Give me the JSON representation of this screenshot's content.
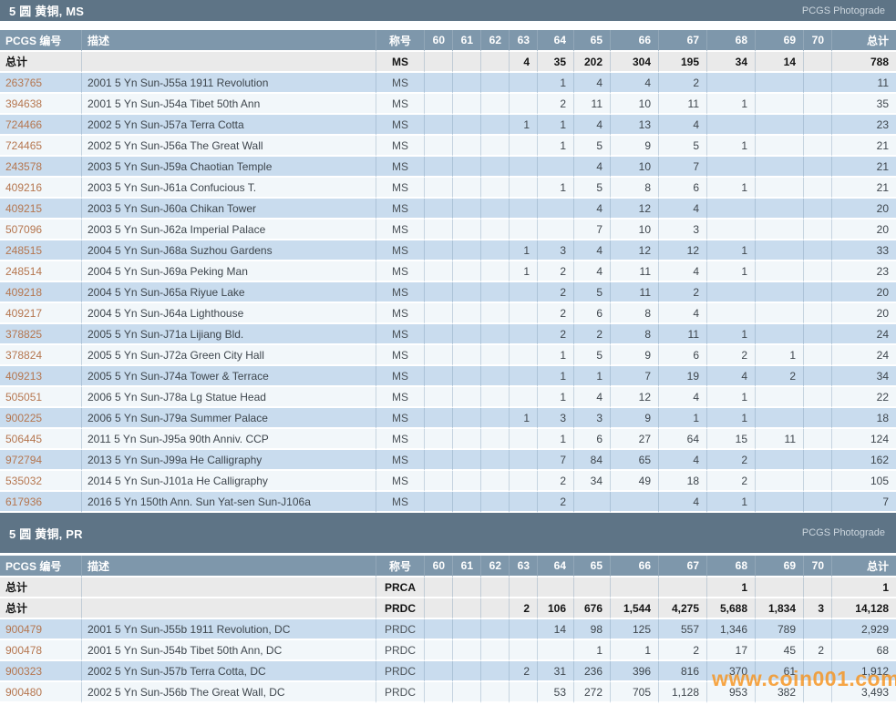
{
  "table_header": {
    "pcgs_number": "PCGS 编号",
    "description": "描述",
    "designation": "称号",
    "grades": [
      "60",
      "61",
      "62",
      "63",
      "64",
      "65",
      "66",
      "67",
      "68",
      "69",
      "70"
    ],
    "total": "总计"
  },
  "watermark": "www.coin001.com",
  "colors": {
    "section_bar": "#5e7486",
    "column_header": "#7e97ab",
    "row_blue": "#c9dcee",
    "row_white": "#f2f7fa",
    "totals_row": "#eaeaea",
    "link": "#b5764f",
    "watermark": "#f7941e"
  },
  "sections": [
    {
      "title": "5 圆 黄铜, MS",
      "photograde_label": "PCGS Photograde",
      "total_rows": [
        {
          "label": "总计",
          "designation": "MS",
          "grades": [
            "",
            "",
            "",
            "4",
            "35",
            "202",
            "304",
            "195",
            "34",
            "14",
            ""
          ],
          "total": "788"
        }
      ],
      "rows": [
        {
          "pcgs": "263765",
          "description": "2001 5 Yn Sun-J55a 1911 Revolution",
          "designation": "MS",
          "grades": [
            "",
            "",
            "",
            "",
            "1",
            "4",
            "4",
            "2",
            "",
            "",
            ""
          ],
          "total": "11"
        },
        {
          "pcgs": "394638",
          "description": "2001 5 Yn Sun-J54a Tibet 50th Ann",
          "designation": "MS",
          "grades": [
            "",
            "",
            "",
            "",
            "2",
            "11",
            "10",
            "11",
            "1",
            "",
            ""
          ],
          "total": "35"
        },
        {
          "pcgs": "724466",
          "description": "2002 5 Yn Sun-J57a Terra Cotta",
          "designation": "MS",
          "grades": [
            "",
            "",
            "",
            "1",
            "1",
            "4",
            "13",
            "4",
            "",
            "",
            ""
          ],
          "total": "23"
        },
        {
          "pcgs": "724465",
          "description": "2002 5 Yn Sun-J56a The Great Wall",
          "designation": "MS",
          "grades": [
            "",
            "",
            "",
            "",
            "1",
            "5",
            "9",
            "5",
            "1",
            "",
            ""
          ],
          "total": "21"
        },
        {
          "pcgs": "243578",
          "description": "2003 5 Yn Sun-J59a Chaotian Temple",
          "designation": "MS",
          "grades": [
            "",
            "",
            "",
            "",
            "",
            "4",
            "10",
            "7",
            "",
            "",
            ""
          ],
          "total": "21"
        },
        {
          "pcgs": "409216",
          "description": "2003 5 Yn Sun-J61a Confucious T.",
          "designation": "MS",
          "grades": [
            "",
            "",
            "",
            "",
            "1",
            "5",
            "8",
            "6",
            "1",
            "",
            ""
          ],
          "total": "21"
        },
        {
          "pcgs": "409215",
          "description": "2003 5 Yn Sun-J60a Chikan Tower",
          "designation": "MS",
          "grades": [
            "",
            "",
            "",
            "",
            "",
            "4",
            "12",
            "4",
            "",
            "",
            ""
          ],
          "total": "20"
        },
        {
          "pcgs": "507096",
          "description": "2003 5 Yn Sun-J62a Imperial Palace",
          "designation": "MS",
          "grades": [
            "",
            "",
            "",
            "",
            "",
            "7",
            "10",
            "3",
            "",
            "",
            ""
          ],
          "total": "20"
        },
        {
          "pcgs": "248515",
          "description": "2004 5 Yn Sun-J68a Suzhou Gardens",
          "designation": "MS",
          "grades": [
            "",
            "",
            "",
            "1",
            "3",
            "4",
            "12",
            "12",
            "1",
            "",
            ""
          ],
          "total": "33"
        },
        {
          "pcgs": "248514",
          "description": "2004 5 Yn Sun-J69a Peking Man",
          "designation": "MS",
          "grades": [
            "",
            "",
            "",
            "1",
            "2",
            "4",
            "11",
            "4",
            "1",
            "",
            ""
          ],
          "total": "23"
        },
        {
          "pcgs": "409218",
          "description": "2004 5 Yn Sun-J65a Riyue Lake",
          "designation": "MS",
          "grades": [
            "",
            "",
            "",
            "",
            "2",
            "5",
            "11",
            "2",
            "",
            "",
            ""
          ],
          "total": "20"
        },
        {
          "pcgs": "409217",
          "description": "2004 5 Yn Sun-J64a Lighthouse",
          "designation": "MS",
          "grades": [
            "",
            "",
            "",
            "",
            "2",
            "6",
            "8",
            "4",
            "",
            "",
            ""
          ],
          "total": "20"
        },
        {
          "pcgs": "378825",
          "description": "2005 5 Yn Sun-J71a Lijiang Bld.",
          "designation": "MS",
          "grades": [
            "",
            "",
            "",
            "",
            "2",
            "2",
            "8",
            "11",
            "1",
            "",
            ""
          ],
          "total": "24"
        },
        {
          "pcgs": "378824",
          "description": "2005 5 Yn Sun-J72a Green City Hall",
          "designation": "MS",
          "grades": [
            "",
            "",
            "",
            "",
            "1",
            "5",
            "9",
            "6",
            "2",
            "1",
            ""
          ],
          "total": "24"
        },
        {
          "pcgs": "409213",
          "description": "2005 5 Yn Sun-J74a Tower & Terrace",
          "designation": "MS",
          "grades": [
            "",
            "",
            "",
            "",
            "1",
            "1",
            "7",
            "19",
            "4",
            "2",
            ""
          ],
          "total": "34"
        },
        {
          "pcgs": "505051",
          "description": "2006 5 Yn Sun-J78a Lg Statue Head",
          "designation": "MS",
          "grades": [
            "",
            "",
            "",
            "",
            "1",
            "4",
            "12",
            "4",
            "1",
            "",
            ""
          ],
          "total": "22"
        },
        {
          "pcgs": "900225",
          "description": "2006 5 Yn Sun-J79a Summer Palace",
          "designation": "MS",
          "grades": [
            "",
            "",
            "",
            "1",
            "3",
            "3",
            "9",
            "1",
            "1",
            "",
            ""
          ],
          "total": "18"
        },
        {
          "pcgs": "506445",
          "description": "2011 5 Yn Sun-J95a 90th Anniv. CCP",
          "designation": "MS",
          "grades": [
            "",
            "",
            "",
            "",
            "1",
            "6",
            "27",
            "64",
            "15",
            "11",
            ""
          ],
          "total": "124"
        },
        {
          "pcgs": "972794",
          "description": "2013 5 Yn Sun-J99a He Calligraphy",
          "designation": "MS",
          "grades": [
            "",
            "",
            "",
            "",
            "7",
            "84",
            "65",
            "4",
            "2",
            "",
            ""
          ],
          "total": "162"
        },
        {
          "pcgs": "535032",
          "description": "2014 5 Yn Sun-J101a He Calligraphy",
          "designation": "MS",
          "grades": [
            "",
            "",
            "",
            "",
            "2",
            "34",
            "49",
            "18",
            "2",
            "",
            ""
          ],
          "total": "105"
        },
        {
          "pcgs": "617936",
          "description": "2016 5 Yn 150th Ann. Sun Yat-sen Sun-J106a",
          "designation": "MS",
          "grades": [
            "",
            "",
            "",
            "",
            "2",
            "",
            "",
            "4",
            "1",
            "",
            ""
          ],
          "total": "7"
        }
      ]
    },
    {
      "title": "5 圆 黄铜, PR",
      "photograde_label": "PCGS Photograde",
      "total_rows": [
        {
          "label": "总计",
          "designation": "PRCA",
          "grades": [
            "",
            "",
            "",
            "",
            "",
            "",
            "",
            "",
            "1",
            "",
            ""
          ],
          "total": "1"
        },
        {
          "label": "总计",
          "designation": "PRDC",
          "grades": [
            "",
            "",
            "",
            "2",
            "106",
            "676",
            "1,544",
            "4,275",
            "5,688",
            "1,834",
            "3"
          ],
          "total": "14,128"
        }
      ],
      "rows": [
        {
          "pcgs": "900479",
          "description": "2001 5 Yn Sun-J55b 1911 Revolution, DC",
          "designation": "PRDC",
          "grades": [
            "",
            "",
            "",
            "",
            "14",
            "98",
            "125",
            "557",
            "1,346",
            "789",
            ""
          ],
          "total": "2,929"
        },
        {
          "pcgs": "900478",
          "description": "2001 5 Yn Sun-J54b Tibet 50th Ann, DC",
          "designation": "PRDC",
          "grades": [
            "",
            "",
            "",
            "",
            "",
            "1",
            "1",
            "2",
            "17",
            "45",
            "2"
          ],
          "total": "68"
        },
        {
          "pcgs": "900323",
          "description": "2002 5 Yn Sun-J57b Terra Cotta, DC",
          "designation": "PRDC",
          "grades": [
            "",
            "",
            "",
            "2",
            "31",
            "236",
            "396",
            "816",
            "370",
            "61",
            ""
          ],
          "total": "1,912"
        },
        {
          "pcgs": "900480",
          "description": "2002 5 Yn Sun-J56b The Great Wall, DC",
          "designation": "PRDC",
          "grades": [
            "",
            "",
            "",
            "",
            "53",
            "272",
            "705",
            "1,128",
            "953",
            "382",
            ""
          ],
          "total": "3,493"
        }
      ]
    }
  ]
}
